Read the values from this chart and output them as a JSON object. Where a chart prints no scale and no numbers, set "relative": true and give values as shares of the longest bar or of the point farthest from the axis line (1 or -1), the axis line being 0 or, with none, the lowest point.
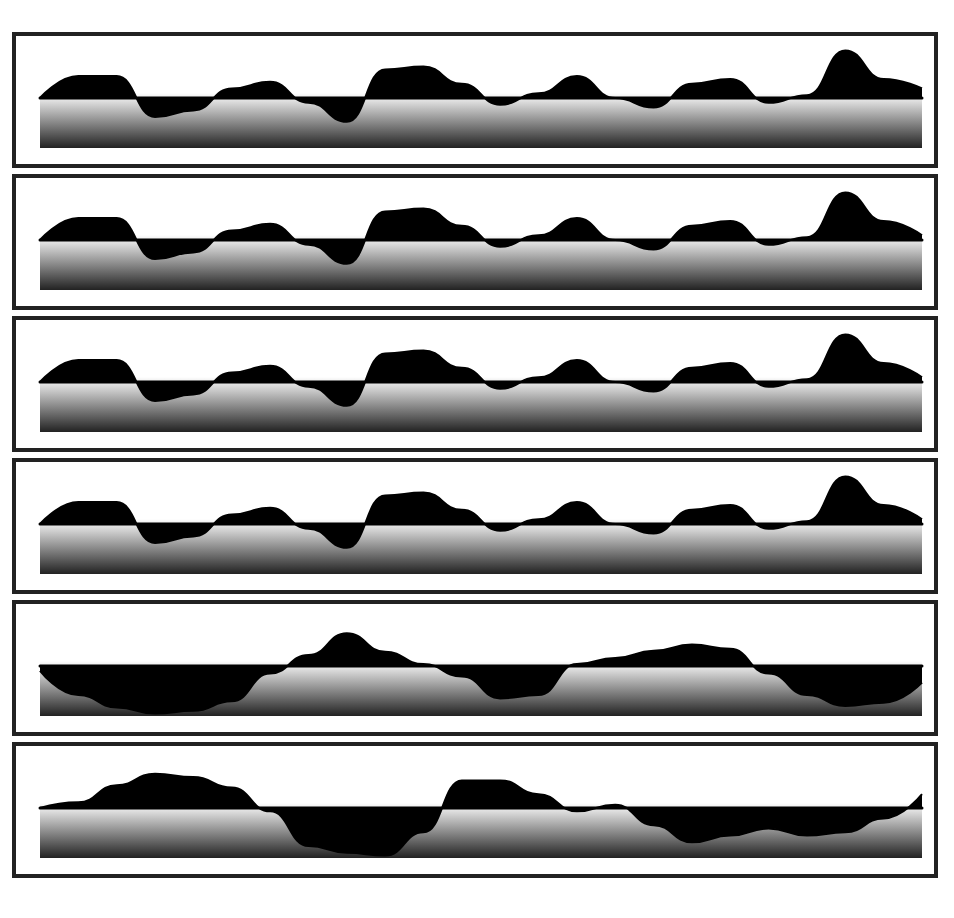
{
  "chart_data": [
    {
      "type": "area",
      "relative": true,
      "color": "#000000",
      "categories": [
        null,
        null,
        null,
        null,
        null,
        null,
        null,
        null,
        null,
        null,
        null,
        null,
        null,
        null,
        null,
        null,
        null,
        null,
        null,
        null,
        null,
        null,
        null,
        null
      ],
      "values": [
        0,
        0.46,
        0.46,
        -0.4,
        -0.26,
        0.2,
        0.34,
        -0.1,
        -0.5,
        0.6,
        0.66,
        0.3,
        -0.14,
        0.1,
        0.46,
        0,
        -0.2,
        0.3,
        0.4,
        -0.1,
        0.06,
        1,
        0.4,
        0.2
      ]
    },
    {
      "type": "area",
      "relative": true,
      "color": "#000000",
      "categories": [
        null,
        null,
        null,
        null,
        null,
        null,
        null,
        null,
        null,
        null,
        null,
        null,
        null,
        null,
        null,
        null,
        null,
        null,
        null,
        null,
        null,
        null,
        null,
        null
      ],
      "values": [
        0,
        0.46,
        0.46,
        -0.4,
        -0.26,
        0.2,
        0.34,
        -0.1,
        -0.5,
        0.6,
        0.66,
        0.3,
        -0.14,
        0.1,
        0.46,
        0,
        -0.2,
        0.3,
        0.4,
        -0.1,
        0.06,
        1,
        0.4,
        0.1
      ]
    },
    {
      "type": "area",
      "relative": true,
      "color": "#000000",
      "categories": [
        null,
        null,
        null,
        null,
        null,
        null,
        null,
        null,
        null,
        null,
        null,
        null,
        null,
        null,
        null,
        null,
        null,
        null,
        null,
        null,
        null,
        null,
        null,
        null
      ],
      "values": [
        0,
        0.46,
        0.46,
        -0.4,
        -0.26,
        0.2,
        0.34,
        -0.1,
        -0.5,
        0.6,
        0.66,
        0.3,
        -0.14,
        0.1,
        0.46,
        0,
        -0.2,
        0.3,
        0.4,
        -0.1,
        0.06,
        1,
        0.4,
        0.1
      ]
    },
    {
      "type": "area",
      "relative": true,
      "color": "#000000",
      "categories": [
        null,
        null,
        null,
        null,
        null,
        null,
        null,
        null,
        null,
        null,
        null,
        null,
        null,
        null,
        null,
        null,
        null,
        null,
        null,
        null,
        null,
        null,
        null,
        null
      ],
      "values": [
        0,
        0.46,
        0.46,
        -0.4,
        -0.26,
        0.2,
        0.34,
        -0.1,
        -0.5,
        0.6,
        0.66,
        0.3,
        -0.14,
        0.1,
        0.46,
        0,
        -0.2,
        0.3,
        0.4,
        -0.1,
        0.06,
        1,
        0.4,
        0.1
      ]
    },
    {
      "type": "area",
      "relative": true,
      "color": "#000000",
      "categories": [
        null,
        null,
        null,
        null,
        null,
        null,
        null,
        null,
        null,
        null,
        null,
        null,
        null,
        null,
        null,
        null,
        null,
        null,
        null,
        null,
        null,
        null,
        null,
        null
      ],
      "values": [
        -0.1,
        -0.61,
        -0.87,
        -1,
        -0.94,
        -0.74,
        -0.16,
        0.23,
        0.69,
        0.3,
        0.04,
        -0.22,
        -0.68,
        -0.61,
        0.04,
        0.17,
        0.32,
        0.45,
        0.36,
        -0.16,
        -0.61,
        -0.84,
        -0.77,
        -0.35
      ]
    },
    {
      "type": "area",
      "relative": true,
      "color": "#000000",
      "categories": [
        null,
        null,
        null,
        null,
        null,
        null,
        null,
        null,
        null,
        null,
        null,
        null,
        null,
        null,
        null,
        null,
        null,
        null,
        null,
        null,
        null,
        null,
        null,
        null
      ],
      "values": [
        0,
        0.12,
        0.48,
        0.72,
        0.65,
        0.43,
        -0.07,
        -0.8,
        -0.94,
        -1,
        -0.51,
        0.58,
        0.58,
        0.29,
        -0.07,
        0.07,
        -0.36,
        -0.72,
        -0.58,
        -0.43,
        -0.58,
        -0.51,
        -0.22,
        0.29
      ]
    }
  ]
}
